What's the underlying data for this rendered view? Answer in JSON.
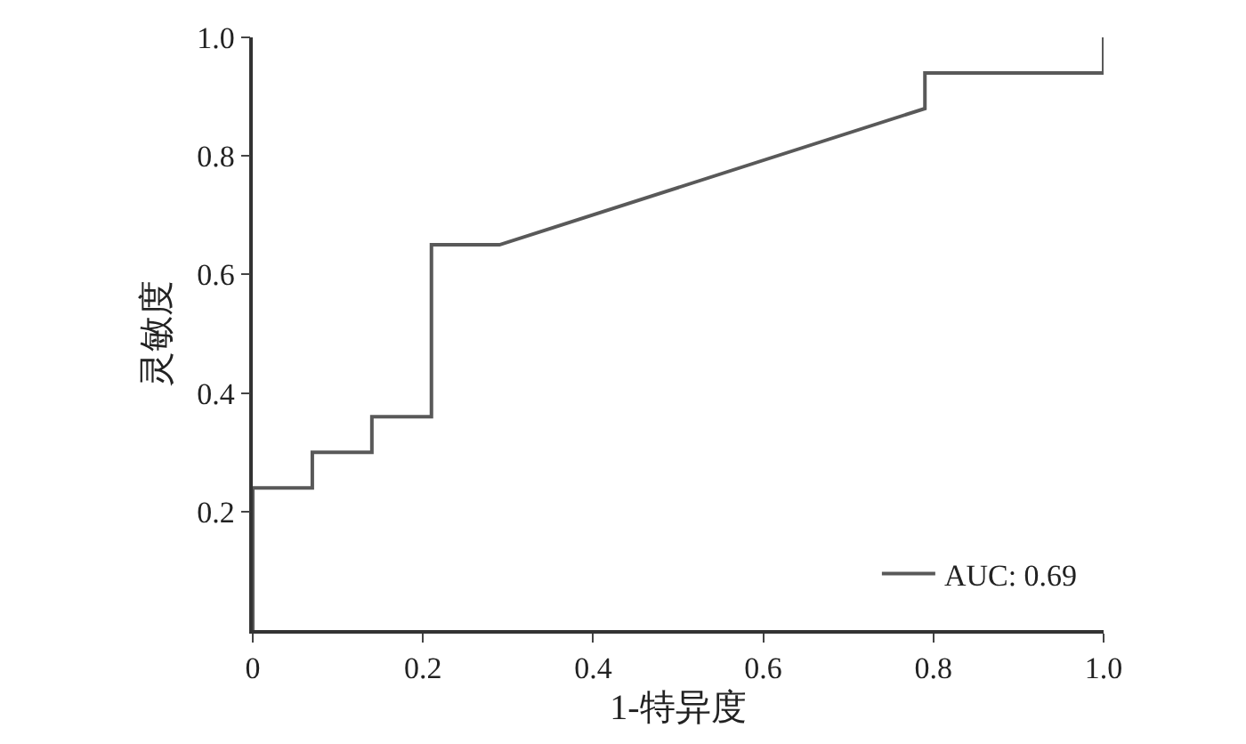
{
  "chart_data": {
    "type": "line",
    "xlabel": "1-特异度",
    "ylabel": "灵敏度",
    "x": [
      0,
      0,
      0.07,
      0.07,
      0.14,
      0.14,
      0.21,
      0.21,
      0.29,
      0.79,
      0.79,
      1.0,
      1.0
    ],
    "series": [
      {
        "name": "AUC: 0.69",
        "color": "#595959",
        "values": [
          0,
          0.24,
          0.24,
          0.3,
          0.3,
          0.36,
          0.36,
          0.65,
          0.65,
          0.88,
          0.94,
          0.94,
          1.0
        ]
      }
    ],
    "xlim": [
      0,
      1.0
    ],
    "ylim": [
      0,
      1.0
    ],
    "xticks": [
      {
        "value": 0,
        "label": "0"
      },
      {
        "value": 0.2,
        "label": "0.2"
      },
      {
        "value": 0.4,
        "label": "0.4"
      },
      {
        "value": 0.6,
        "label": "0.6"
      },
      {
        "value": 0.8,
        "label": "0.8"
      },
      {
        "value": 1.0,
        "label": "1.0"
      }
    ],
    "yticks": [
      {
        "value": 0.2,
        "label": "0.2"
      },
      {
        "value": 0.4,
        "label": "0.4"
      },
      {
        "value": 0.6,
        "label": "0.6"
      },
      {
        "value": 0.8,
        "label": "0.8"
      },
      {
        "value": 1.0,
        "label": "1.0"
      }
    ],
    "legend": "bottom right",
    "marker": "none",
    "line_style": "solid"
  }
}
